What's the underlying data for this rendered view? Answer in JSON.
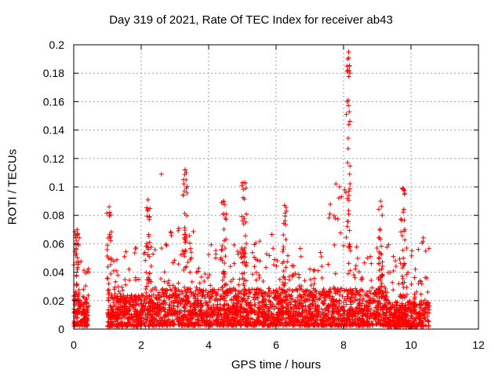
{
  "chart_data": {
    "type": "scatter",
    "title": "Day 319 of 2021, Rate Of TEC Index for receiver ab43",
    "xlabel": "GPS time / hours",
    "ylabel": "ROTI / TECUs",
    "xlim": [
      0,
      12
    ],
    "ylim": [
      0,
      0.2
    ],
    "xticks": [
      "0",
      "2",
      "4",
      "6",
      "8",
      "10",
      "12"
    ],
    "yticks": [
      "0",
      "0.02",
      "0.04",
      "0.06",
      "0.08",
      "0.1",
      "0.12",
      "0.14",
      "0.16",
      "0.18",
      "0.2"
    ],
    "grid": true,
    "marker": "+",
    "color": "#ff0000",
    "clusters": [
      {
        "x": [
          0.0,
          0.45
        ],
        "base": 0.01,
        "peak": 0.07,
        "peak_x": 0.1
      },
      {
        "x": [
          1.0,
          1.5
        ],
        "base": 0.01,
        "peak": 0.086,
        "peak_x": 1.05
      },
      {
        "x": [
          1.5,
          2.6
        ],
        "base": 0.01,
        "peak": 0.091,
        "peak_x": 2.2
      },
      {
        "x": [
          2.6,
          3.6
        ],
        "base": 0.012,
        "peak": 0.112,
        "peak_x": 3.3
      },
      {
        "x": [
          3.6,
          4.9
        ],
        "base": 0.012,
        "peak": 0.09,
        "peak_x": 4.45
      },
      {
        "x": [
          4.9,
          6.0
        ],
        "base": 0.012,
        "peak": 0.103,
        "peak_x": 5.05
      },
      {
        "x": [
          6.0,
          7.5
        ],
        "base": 0.012,
        "peak": 0.087,
        "peak_x": 6.25
      },
      {
        "x": [
          7.5,
          8.2
        ],
        "base": 0.012,
        "peak": 0.195,
        "peak_x": 8.15
      },
      {
        "x": [
          8.2,
          9.3
        ],
        "base": 0.012,
        "peak": 0.09,
        "peak_x": 9.1
      },
      {
        "x": [
          9.3,
          10.55
        ],
        "base": 0.008,
        "peak": 0.099,
        "peak_x": 9.75
      }
    ],
    "notable_points": [
      {
        "x": 8.15,
        "y": 0.195
      },
      {
        "x": 8.12,
        "y": 0.19
      },
      {
        "x": 8.1,
        "y": 0.185
      },
      {
        "x": 8.13,
        "y": 0.182
      },
      {
        "x": 8.14,
        "y": 0.161
      },
      {
        "x": 8.11,
        "y": 0.16
      },
      {
        "x": 8.12,
        "y": 0.117
      },
      {
        "x": 8.18,
        "y": 0.109
      },
      {
        "x": 3.3,
        "y": 0.112
      },
      {
        "x": 3.33,
        "y": 0.105
      },
      {
        "x": 2.6,
        "y": 0.109
      },
      {
        "x": 5.0,
        "y": 0.103
      },
      {
        "x": 9.75,
        "y": 0.099
      },
      {
        "x": 8.03,
        "y": 0.098
      },
      {
        "x": 8.07,
        "y": 0.096
      }
    ]
  }
}
